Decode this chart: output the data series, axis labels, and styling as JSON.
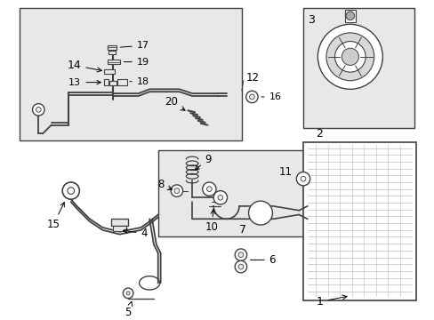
{
  "bg_color": "#ffffff",
  "diagram_bg": "#e8e8e8",
  "line_color": "#404040",
  "fig_w": 4.89,
  "fig_h": 3.6,
  "dpi": 100
}
